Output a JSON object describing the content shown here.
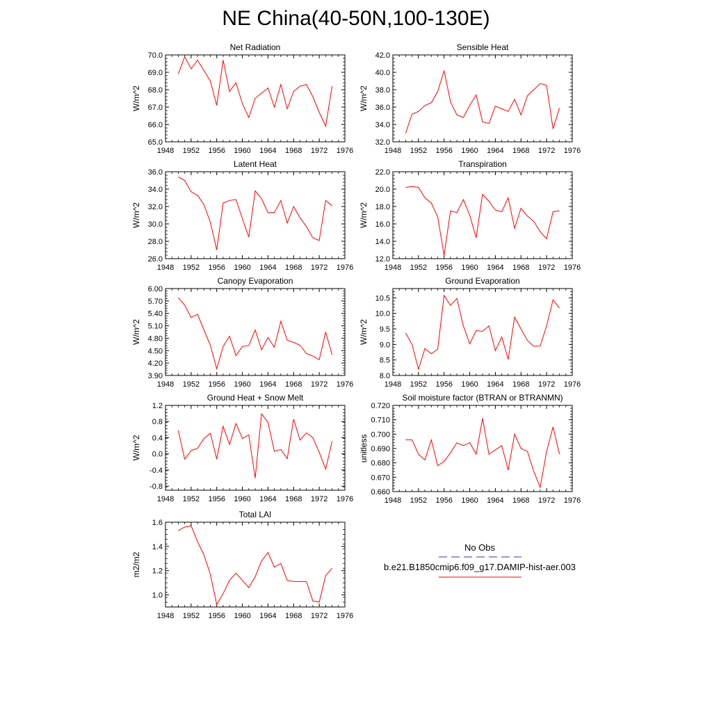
{
  "title": "NE China(40-50N,100-130E)",
  "legend": {
    "obs_label": "No Obs",
    "obs_color": "#3333aa",
    "model_label": "b.e21.B1850cmip6.f09_g17.DAMIP-hist-aer.003",
    "model_color": "#ff0000"
  },
  "chart_data": [
    {
      "type": "line",
      "title": "Net Radiation",
      "ylabel": "W/m^2",
      "xlim": [
        1948,
        1976
      ],
      "xticks": [
        "1948",
        "1952",
        "1956",
        "1960",
        "1964",
        "1968",
        "1972",
        "1976"
      ],
      "ylim": [
        65.0,
        70.0
      ],
      "yticks": [
        "65.0",
        "66.0",
        "67.0",
        "68.0",
        "69.0",
        "70.0"
      ],
      "x": [
        1950,
        1951,
        1952,
        1953,
        1954,
        1955,
        1956,
        1957,
        1958,
        1959,
        1960,
        1961,
        1962,
        1963,
        1964,
        1965,
        1966,
        1967,
        1968,
        1969,
        1970,
        1971,
        1972,
        1973,
        1974
      ],
      "series": [
        {
          "values": [
            68.9,
            69.9,
            69.2,
            69.7,
            69.1,
            68.5,
            67.1,
            69.7,
            67.9,
            68.4,
            67.2,
            66.4,
            67.5,
            67.8,
            68.1,
            67.0,
            68.3,
            66.9,
            67.9,
            68.2,
            68.3,
            67.6,
            66.7,
            65.9,
            68.2
          ],
          "color": "#ff0000"
        }
      ]
    },
    {
      "type": "line",
      "title": "Sensible Heat",
      "ylabel": "W/m^2",
      "xlim": [
        1948,
        1976
      ],
      "xticks": [
        "1948",
        "1952",
        "1956",
        "1960",
        "1964",
        "1968",
        "1972",
        "1976"
      ],
      "ylim": [
        32.0,
        42.0
      ],
      "yticks": [
        "32.0",
        "34.0",
        "36.0",
        "38.0",
        "40.0",
        "42.0"
      ],
      "x": [
        1950,
        1951,
        1952,
        1953,
        1954,
        1955,
        1956,
        1957,
        1958,
        1959,
        1960,
        1961,
        1962,
        1963,
        1964,
        1965,
        1966,
        1967,
        1968,
        1969,
        1970,
        1971,
        1972,
        1973,
        1974
      ],
      "series": [
        {
          "values": [
            33.0,
            35.2,
            35.5,
            36.2,
            36.5,
            37.8,
            40.2,
            36.6,
            35.1,
            34.8,
            36.2,
            37.4,
            34.3,
            34.1,
            36.1,
            35.8,
            35.5,
            36.9,
            35.1,
            37.3,
            38.0,
            38.7,
            38.5,
            33.5,
            35.9
          ],
          "color": "#ff0000"
        }
      ]
    },
    {
      "type": "line",
      "title": "Latent Heat",
      "ylabel": "W/m^2",
      "xlim": [
        1948,
        1976
      ],
      "xticks": [
        "1948",
        "1952",
        "1956",
        "1960",
        "1964",
        "1968",
        "1972",
        "1976"
      ],
      "ylim": [
        26.0,
        36.0
      ],
      "yticks": [
        "26.0",
        "28.0",
        "30.0",
        "32.0",
        "34.0",
        "36.0"
      ],
      "x": [
        1950,
        1951,
        1952,
        1953,
        1954,
        1955,
        1956,
        1957,
        1958,
        1959,
        1960,
        1961,
        1962,
        1963,
        1964,
        1965,
        1966,
        1967,
        1968,
        1969,
        1970,
        1971,
        1972,
        1973,
        1974
      ],
      "series": [
        {
          "values": [
            35.4,
            35.0,
            33.7,
            33.3,
            32.2,
            30.2,
            27.0,
            32.4,
            32.7,
            32.8,
            30.6,
            28.5,
            33.8,
            32.9,
            31.3,
            31.3,
            32.7,
            30.1,
            32.0,
            30.7,
            29.7,
            28.4,
            28.1,
            32.7,
            32.1
          ],
          "color": "#ff0000"
        }
      ]
    },
    {
      "type": "line",
      "title": "Transpiration",
      "ylabel": "W/m^2",
      "xlim": [
        1948,
        1976
      ],
      "xticks": [
        "1948",
        "1952",
        "1956",
        "1960",
        "1964",
        "1968",
        "1972",
        "1976"
      ],
      "ylim": [
        12.0,
        22.0
      ],
      "yticks": [
        "12.0",
        "14.0",
        "16.0",
        "18.0",
        "20.0",
        "22.0"
      ],
      "x": [
        1950,
        1951,
        1952,
        1953,
        1954,
        1955,
        1956,
        1957,
        1958,
        1959,
        1960,
        1961,
        1962,
        1963,
        1964,
        1965,
        1966,
        1967,
        1968,
        1969,
        1970,
        1971,
        1972,
        1973,
        1974
      ],
      "series": [
        {
          "values": [
            20.2,
            20.3,
            20.2,
            19.0,
            18.4,
            16.8,
            12.4,
            17.5,
            17.3,
            18.8,
            17.0,
            14.4,
            19.4,
            18.6,
            17.6,
            17.4,
            19.0,
            15.5,
            17.8,
            16.9,
            16.3,
            15.1,
            14.3,
            17.4,
            17.5
          ],
          "color": "#ff0000"
        }
      ]
    },
    {
      "type": "line",
      "title": "Canopy Evaporation",
      "ylabel": "W/m^2",
      "xlim": [
        1948,
        1976
      ],
      "xticks": [
        "1948",
        "1952",
        "1956",
        "1960",
        "1964",
        "1968",
        "1972",
        "1976"
      ],
      "ylim": [
        3.9,
        6.0
      ],
      "yticks": [
        "3.90",
        "4.20",
        "4.50",
        "4.80",
        "5.10",
        "5.40",
        "5.70",
        "6.00"
      ],
      "x": [
        1950,
        1951,
        1952,
        1953,
        1954,
        1955,
        1956,
        1957,
        1958,
        1959,
        1960,
        1961,
        1962,
        1963,
        1964,
        1965,
        1966,
        1967,
        1968,
        1969,
        1970,
        1971,
        1972,
        1973,
        1974
      ],
      "series": [
        {
          "values": [
            5.78,
            5.6,
            5.3,
            5.38,
            5.0,
            4.63,
            4.06,
            4.6,
            4.85,
            4.38,
            4.6,
            4.62,
            5.0,
            4.52,
            4.82,
            4.58,
            5.21,
            4.75,
            4.7,
            4.63,
            4.43,
            4.37,
            4.28,
            4.95,
            4.4
          ],
          "color": "#ff0000"
        }
      ]
    },
    {
      "type": "line",
      "title": "Ground Evaporation",
      "ylabel": "W/m^2",
      "xlim": [
        1948,
        1976
      ],
      "xticks": [
        "1948",
        "1952",
        "1956",
        "1960",
        "1964",
        "1968",
        "1972",
        "1976"
      ],
      "ylim": [
        8.0,
        10.8
      ],
      "yticks": [
        "8.0",
        "8.5",
        "9.0",
        "9.5",
        "10.0",
        "10.5"
      ],
      "x": [
        1950,
        1951,
        1952,
        1953,
        1954,
        1955,
        1956,
        1957,
        1958,
        1959,
        1960,
        1961,
        1962,
        1963,
        1964,
        1965,
        1966,
        1967,
        1968,
        1969,
        1970,
        1971,
        1972,
        1973,
        1974
      ],
      "series": [
        {
          "values": [
            9.37,
            9.0,
            8.2,
            8.87,
            8.7,
            8.85,
            10.58,
            10.26,
            10.48,
            9.6,
            9.02,
            9.45,
            9.42,
            9.6,
            8.8,
            9.24,
            8.52,
            9.88,
            9.5,
            9.13,
            8.94,
            8.95,
            9.6,
            10.44,
            10.17
          ],
          "color": "#ff0000"
        }
      ]
    },
    {
      "type": "line",
      "title": "Ground Heat + Snow Melt",
      "ylabel": "W/m^2",
      "xlim": [
        1948,
        1976
      ],
      "xticks": [
        "1948",
        "1952",
        "1956",
        "1960",
        "1964",
        "1968",
        "1972",
        "1976"
      ],
      "ylim": [
        -0.9,
        1.2
      ],
      "yticks": [
        "-0.8",
        "-0.4",
        "0.0",
        "0.4",
        "0.8",
        "1.2"
      ],
      "x": [
        1950,
        1951,
        1952,
        1953,
        1954,
        1955,
        1956,
        1957,
        1958,
        1959,
        1960,
        1961,
        1962,
        1963,
        1964,
        1965,
        1966,
        1967,
        1968,
        1969,
        1970,
        1971,
        1972,
        1973,
        1974
      ],
      "series": [
        {
          "values": [
            0.58,
            -0.13,
            0.08,
            0.14,
            0.38,
            0.51,
            -0.13,
            0.68,
            0.23,
            0.75,
            0.38,
            0.47,
            -0.6,
            0.99,
            0.78,
            0.06,
            0.11,
            -0.12,
            0.86,
            0.34,
            0.52,
            0.4,
            0.04,
            -0.38,
            0.31
          ],
          "color": "#ff0000"
        }
      ]
    },
    {
      "type": "line",
      "title": "Soil moisture factor (BTRAN or BTRANMN)",
      "ylabel": "unitless",
      "xlim": [
        1948,
        1976
      ],
      "xticks": [
        "1948",
        "1952",
        "1956",
        "1960",
        "1964",
        "1968",
        "1972",
        "1976"
      ],
      "ylim": [
        0.66,
        0.72
      ],
      "yticks": [
        "0.660",
        "0.670",
        "0.680",
        "0.690",
        "0.700",
        "0.710",
        "0.720"
      ],
      "x": [
        1950,
        1951,
        1952,
        1953,
        1954,
        1955,
        1956,
        1957,
        1958,
        1959,
        1960,
        1961,
        1962,
        1963,
        1964,
        1965,
        1966,
        1967,
        1968,
        1969,
        1970,
        1971,
        1972,
        1973,
        1974
      ],
      "series": [
        {
          "values": [
            0.696,
            0.696,
            0.686,
            0.682,
            0.696,
            0.678,
            0.681,
            0.687,
            0.694,
            0.692,
            0.694,
            0.686,
            0.711,
            0.686,
            0.689,
            0.692,
            0.675,
            0.7,
            0.69,
            0.688,
            0.674,
            0.663,
            0.688,
            0.705,
            0.686
          ],
          "color": "#ff0000"
        }
      ]
    },
    {
      "type": "line",
      "title": "Total LAI",
      "ylabel": "m2/m2",
      "xlim": [
        1948,
        1976
      ],
      "xticks": [
        "1948",
        "1952",
        "1956",
        "1960",
        "1964",
        "1968",
        "1972",
        "1976"
      ],
      "ylim": [
        0.9,
        1.6
      ],
      "yticks": [
        "1.0",
        "1.2",
        "1.4",
        "1.6"
      ],
      "x": [
        1950,
        1951,
        1952,
        1953,
        1954,
        1955,
        1956,
        1957,
        1958,
        1959,
        1960,
        1961,
        1962,
        1963,
        1964,
        1965,
        1966,
        1967,
        1968,
        1969,
        1970,
        1971,
        1972,
        1973,
        1974
      ],
      "series": [
        {
          "values": [
            1.53,
            1.56,
            1.57,
            1.44,
            1.33,
            1.17,
            0.92,
            1.01,
            1.12,
            1.18,
            1.12,
            1.06,
            1.15,
            1.28,
            1.35,
            1.23,
            1.26,
            1.12,
            1.11,
            1.11,
            1.11,
            0.95,
            0.94,
            1.16,
            1.22
          ],
          "color": "#ff0000"
        }
      ]
    }
  ]
}
